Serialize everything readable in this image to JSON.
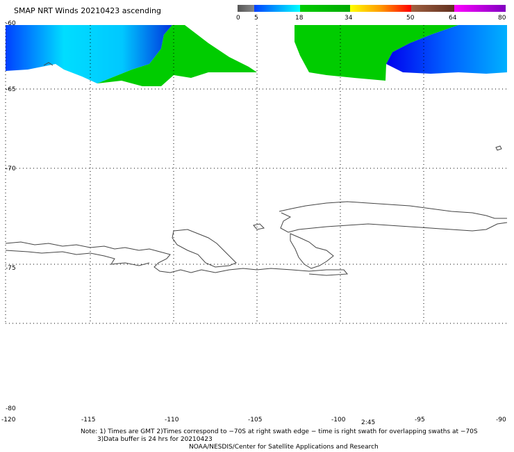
{
  "title": "SMAP NRT Winds 20210423 ascending",
  "legend": {
    "ticks": [
      "0",
      "5",
      "18",
      "34",
      "50",
      "64",
      "80"
    ],
    "colors": [
      "#4d4d4d",
      "#0000ff",
      "#00ffff",
      "#00cc00",
      "#ffff00",
      "#ff8000",
      "#ff0000",
      "#804000",
      "#ffffff",
      "#ff00ff",
      "#8000ff"
    ]
  },
  "map": {
    "lat_labels": [
      "-60",
      "-65",
      "-70",
      "-75",
      "-80"
    ],
    "lon_labels": [
      "-120",
      "-115",
      "-110",
      "-105",
      "-100",
      "-95",
      "-90"
    ],
    "wind_colors": {
      "low": "#0033ee",
      "mid": "#00e8ff",
      "high": "#00cc00"
    }
  },
  "time_label": "2:45",
  "notes": {
    "line1": "Note: 1) Times are GMT 2)Times correspond to −70S at right swath edge − time is right swath for overlapping swaths at −70S",
    "line2": "3)Data buffer is 24 hrs for 20210423",
    "line3": "NOAA/NESDIS/Center for Satellite Applications and Research"
  }
}
